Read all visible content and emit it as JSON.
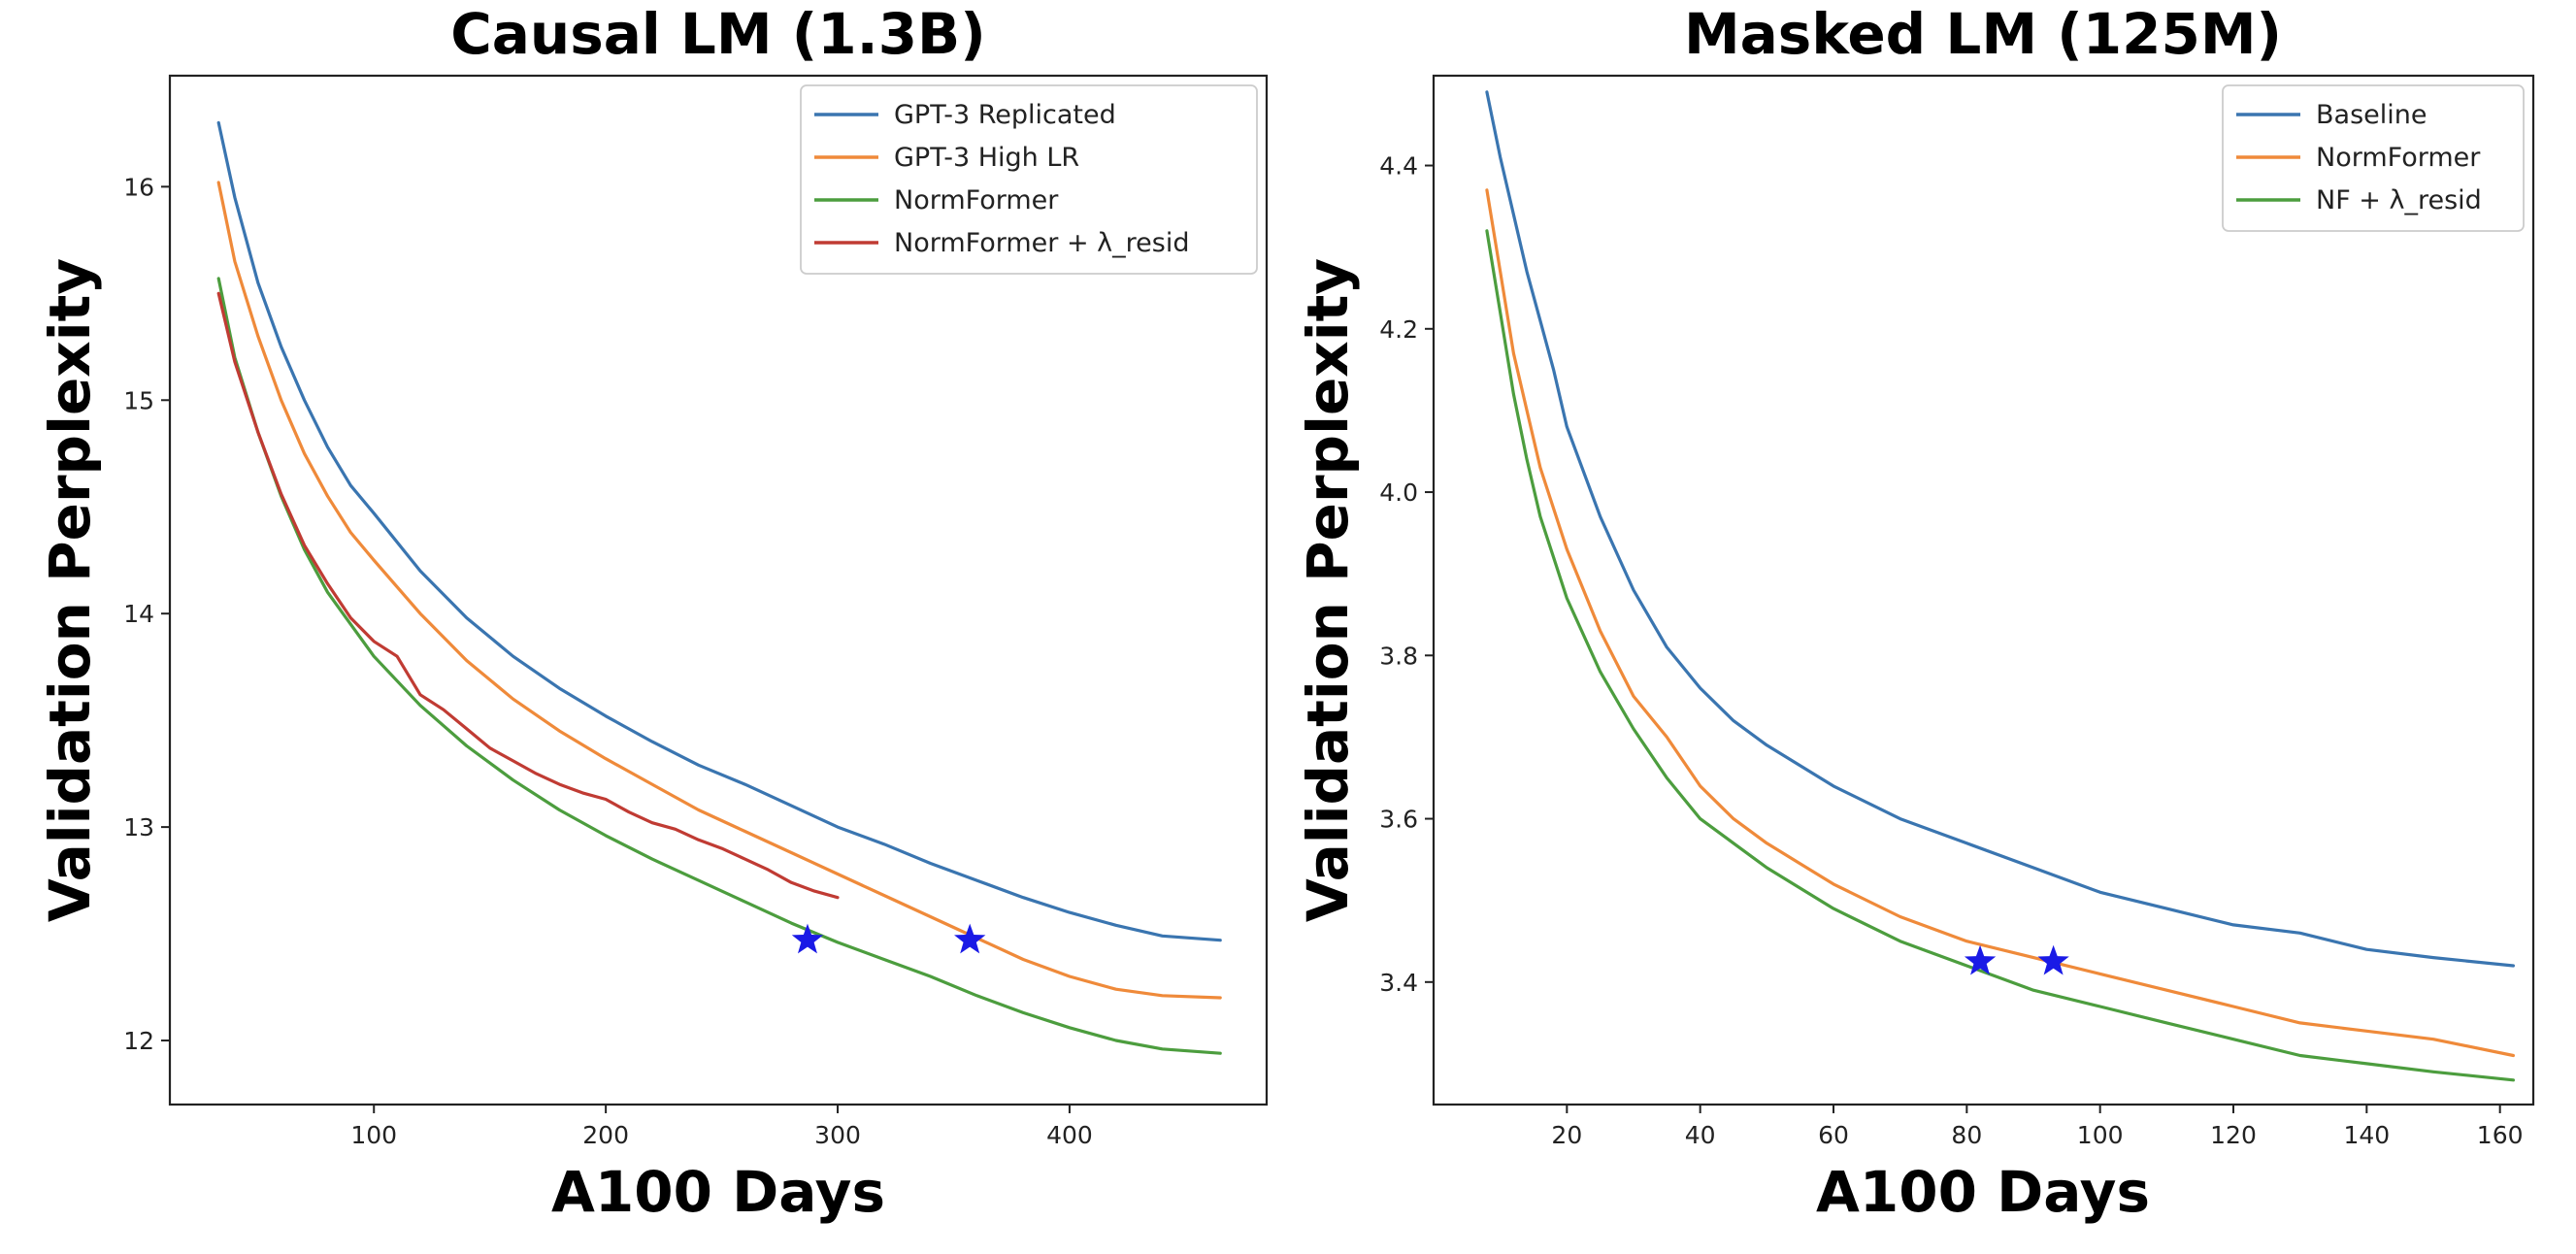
{
  "chart_data": [
    {
      "type": "line",
      "title": "Causal LM (1.3B)",
      "xlabel": "A100 Days",
      "ylabel": "Validation Perplexity",
      "xlim": [
        12,
        485
      ],
      "ylim": [
        11.7,
        16.52
      ],
      "xticks": [
        100,
        200,
        300,
        400
      ],
      "yticks": [
        12,
        13,
        14,
        15,
        16
      ],
      "legend_position": "top-right",
      "series": [
        {
          "name": "GPT-3 Replicated",
          "color": "#3a75b0",
          "x": [
            33,
            40,
            50,
            60,
            70,
            80,
            90,
            100,
            120,
            140,
            160,
            180,
            200,
            220,
            240,
            260,
            280,
            300,
            320,
            340,
            360,
            380,
            400,
            420,
            440,
            465
          ],
          "y": [
            16.3,
            15.95,
            15.55,
            15.25,
            15.0,
            14.78,
            14.6,
            14.47,
            14.2,
            13.98,
            13.8,
            13.65,
            13.52,
            13.4,
            13.29,
            13.2,
            13.1,
            13.0,
            12.92,
            12.83,
            12.75,
            12.67,
            12.6,
            12.54,
            12.49,
            12.47
          ]
        },
        {
          "name": "GPT-3 High LR",
          "color": "#ef8a3a",
          "x": [
            33,
            40,
            50,
            60,
            70,
            80,
            90,
            100,
            120,
            140,
            160,
            180,
            200,
            220,
            240,
            260,
            280,
            300,
            320,
            340,
            360,
            380,
            400,
            420,
            440,
            465
          ],
          "y": [
            16.02,
            15.65,
            15.3,
            15.0,
            14.75,
            14.55,
            14.38,
            14.25,
            14.0,
            13.78,
            13.6,
            13.45,
            13.32,
            13.2,
            13.08,
            12.98,
            12.88,
            12.78,
            12.68,
            12.58,
            12.48,
            12.38,
            12.3,
            12.24,
            12.21,
            12.2
          ]
        },
        {
          "name": "NormFormer",
          "color": "#4c9d3e",
          "x": [
            33,
            40,
            50,
            60,
            70,
            80,
            90,
            100,
            120,
            140,
            160,
            180,
            200,
            220,
            240,
            260,
            280,
            300,
            320,
            340,
            360,
            380,
            400,
            420,
            440,
            465
          ],
          "y": [
            15.57,
            15.2,
            14.85,
            14.55,
            14.3,
            14.1,
            13.95,
            13.8,
            13.57,
            13.38,
            13.22,
            13.08,
            12.96,
            12.85,
            12.75,
            12.65,
            12.55,
            12.46,
            12.38,
            12.3,
            12.21,
            12.13,
            12.06,
            12.0,
            11.96,
            11.94
          ]
        },
        {
          "name": "NormFormer + λ_resid",
          "color": "#c03b33",
          "x": [
            33,
            40,
            50,
            60,
            70,
            80,
            90,
            100,
            110,
            120,
            130,
            140,
            150,
            160,
            170,
            180,
            190,
            200,
            210,
            220,
            230,
            240,
            250,
            260,
            270,
            280,
            290,
            300
          ],
          "y": [
            15.5,
            15.18,
            14.85,
            14.56,
            14.32,
            14.14,
            13.98,
            13.87,
            13.8,
            13.62,
            13.55,
            13.46,
            13.37,
            13.31,
            13.25,
            13.2,
            13.16,
            13.13,
            13.07,
            13.02,
            12.99,
            12.94,
            12.9,
            12.85,
            12.8,
            12.74,
            12.7,
            12.67
          ]
        }
      ],
      "markers": [
        {
          "x": 287,
          "y": 12.47,
          "symbol": "star",
          "color": "#1a1ae6"
        },
        {
          "x": 357,
          "y": 12.47,
          "symbol": "star",
          "color": "#1a1ae6"
        }
      ]
    },
    {
      "type": "line",
      "title": "Masked LM (125M)",
      "xlabel": "A100 Days",
      "ylabel": "Validation Perplexity",
      "xlim": [
        0,
        165
      ],
      "ylim": [
        3.25,
        4.51
      ],
      "xticks": [
        20,
        40,
        60,
        80,
        100,
        120,
        140,
        160
      ],
      "yticks": [
        3.4,
        3.6,
        3.8,
        4.0,
        4.2,
        4.4
      ],
      "legend_position": "top-right",
      "series": [
        {
          "name": "Baseline",
          "color": "#3a75b0",
          "x": [
            8,
            10,
            12,
            14,
            16,
            18,
            20,
            25,
            30,
            35,
            40,
            45,
            50,
            60,
            70,
            80,
            90,
            100,
            110,
            120,
            130,
            140,
            150,
            162
          ],
          "y": [
            4.49,
            4.41,
            4.34,
            4.27,
            4.21,
            4.15,
            4.08,
            3.97,
            3.88,
            3.81,
            3.76,
            3.72,
            3.69,
            3.64,
            3.6,
            3.57,
            3.54,
            3.51,
            3.49,
            3.47,
            3.46,
            3.44,
            3.43,
            3.42
          ]
        },
        {
          "name": "NormFormer",
          "color": "#ef8a3a",
          "x": [
            8,
            10,
            12,
            14,
            16,
            18,
            20,
            25,
            30,
            35,
            40,
            45,
            50,
            60,
            70,
            80,
            90,
            100,
            110,
            120,
            130,
            140,
            150,
            162
          ],
          "y": [
            4.37,
            4.27,
            4.17,
            4.1,
            4.03,
            3.98,
            3.93,
            3.83,
            3.75,
            3.7,
            3.64,
            3.6,
            3.57,
            3.52,
            3.48,
            3.45,
            3.43,
            3.41,
            3.39,
            3.37,
            3.35,
            3.34,
            3.33,
            3.31
          ]
        },
        {
          "name": "NF + λ_resid",
          "color": "#4c9d3e",
          "x": [
            8,
            10,
            12,
            14,
            16,
            18,
            20,
            25,
            30,
            35,
            40,
            45,
            50,
            60,
            70,
            80,
            90,
            100,
            110,
            120,
            130,
            140,
            150,
            162
          ],
          "y": [
            4.32,
            4.22,
            4.12,
            4.04,
            3.97,
            3.92,
            3.87,
            3.78,
            3.71,
            3.65,
            3.6,
            3.57,
            3.54,
            3.49,
            3.45,
            3.42,
            3.39,
            3.37,
            3.35,
            3.33,
            3.31,
            3.3,
            3.29,
            3.28
          ]
        }
      ],
      "markers": [
        {
          "x": 82,
          "y": 3.425,
          "symbol": "star",
          "color": "#1a1ae6"
        },
        {
          "x": 93,
          "y": 3.425,
          "symbol": "star",
          "color": "#1a1ae6"
        }
      ]
    }
  ]
}
